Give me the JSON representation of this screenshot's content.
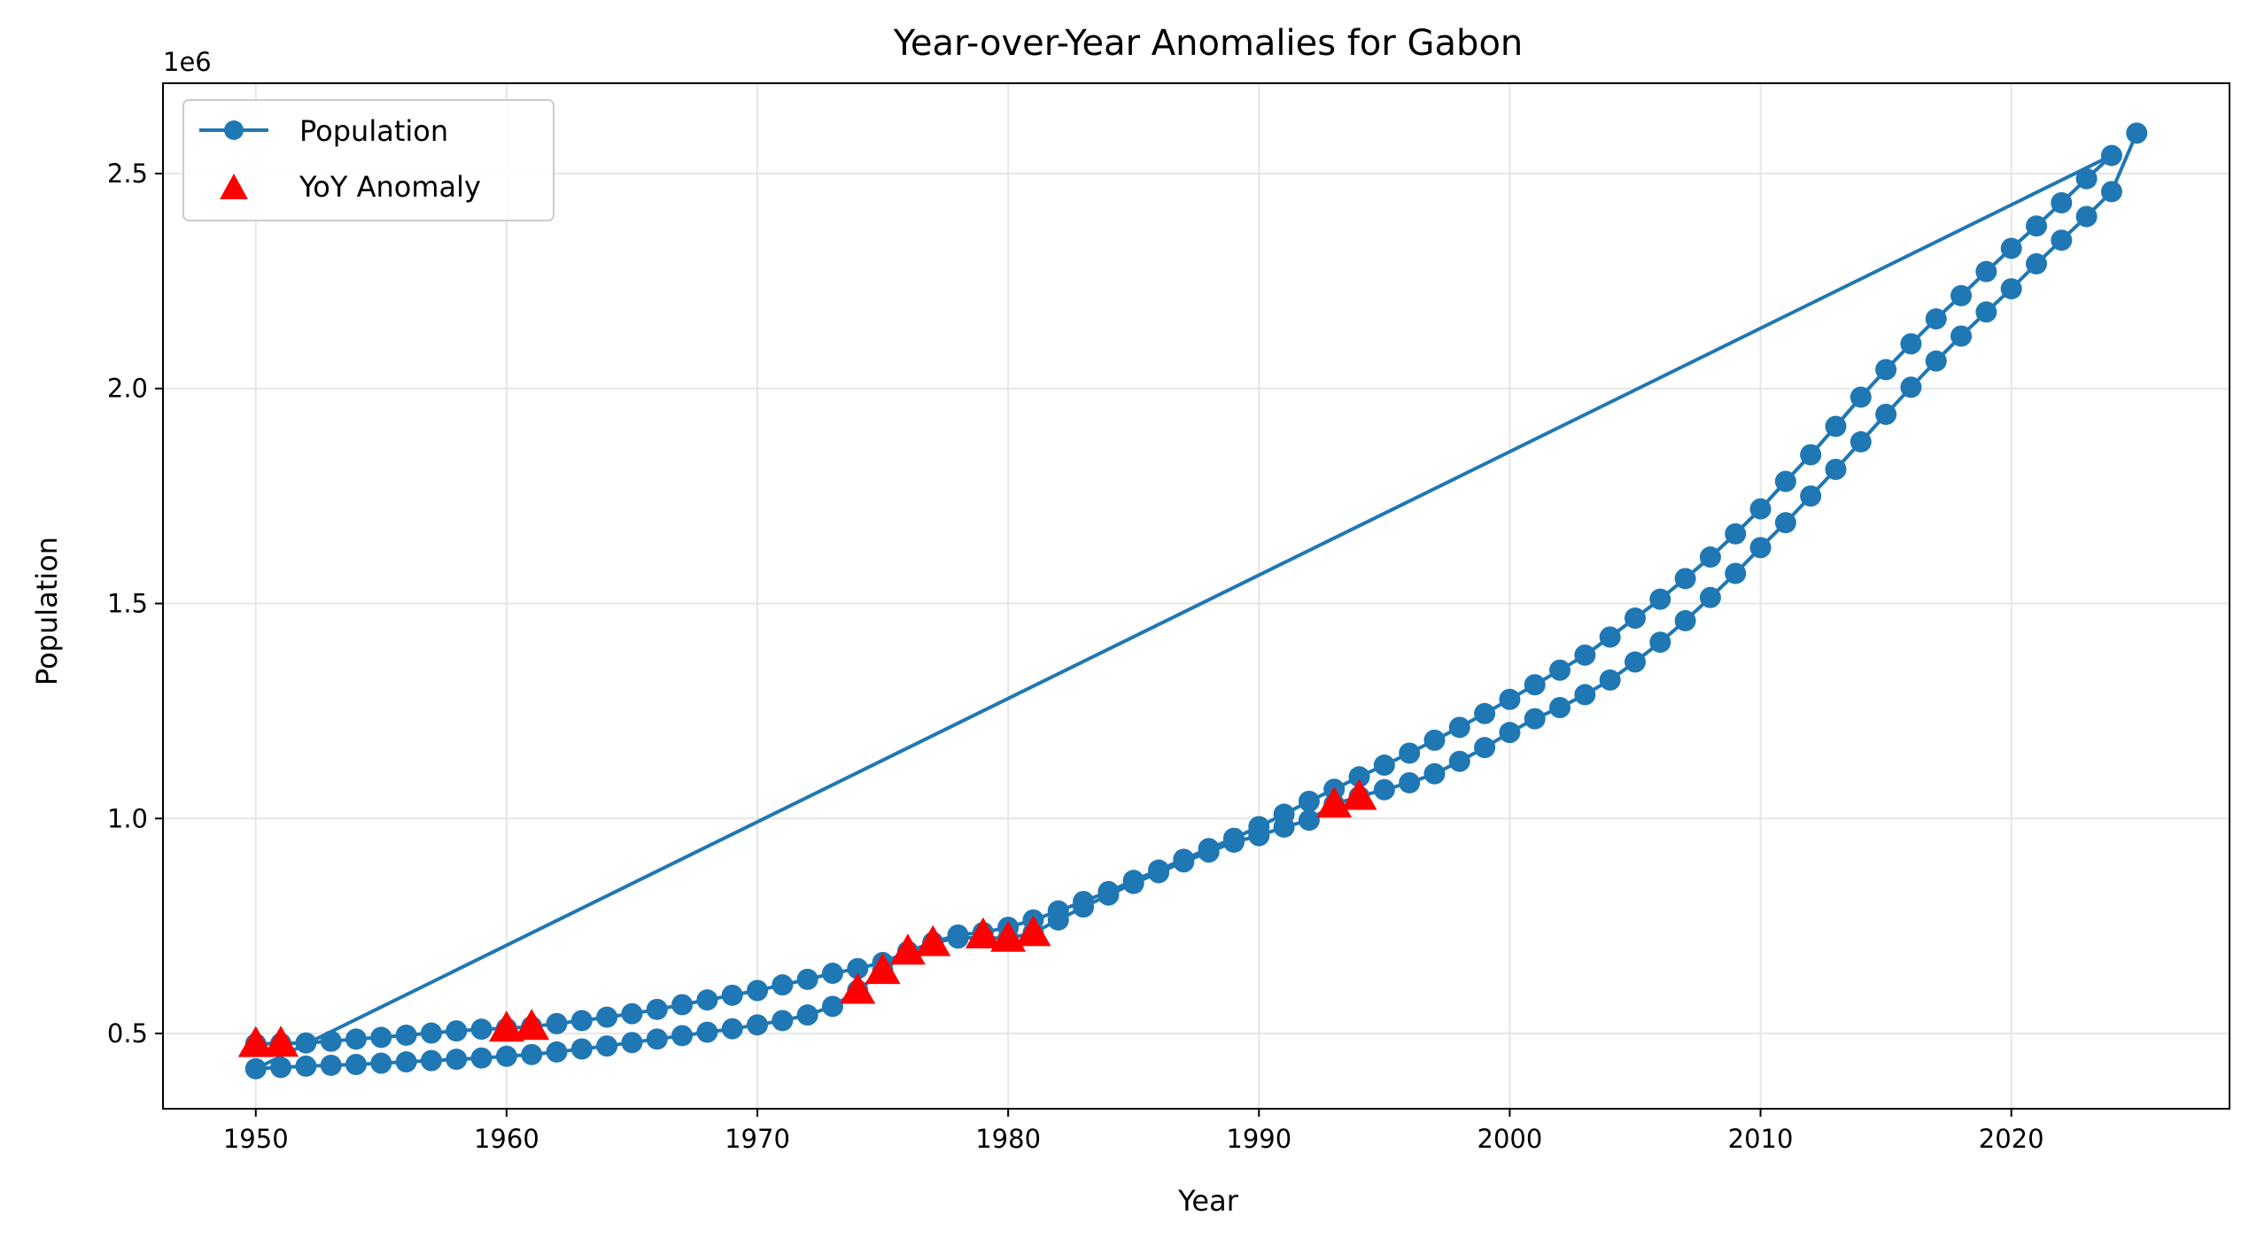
{
  "chart_data": {
    "type": "line",
    "title": "Year-over-Year Anomalies for Gabon",
    "xlabel": "Year",
    "ylabel": "Population",
    "y_offset_label": "1e6",
    "xlim": [
      1946.3,
      2028.7
    ],
    "ylim": [
      0.325,
      2.71
    ],
    "y_scale_factor": 1000000,
    "xticks": [
      1950,
      1960,
      1970,
      1980,
      1990,
      2000,
      2010,
      2020
    ],
    "yticks": [
      0.5,
      1.0,
      1.5,
      2.0,
      2.5
    ],
    "ytick_labels": [
      "0.5",
      "1.0",
      "1.5",
      "2.0",
      "2.5"
    ],
    "grid": true,
    "legend_position": "top-left",
    "colors": {
      "population": "#1f77b4",
      "anomaly": "#ff0000"
    },
    "series": [
      {
        "name": "Population",
        "marker": "circle",
        "x": [
          1950,
          1951,
          1952,
          1953,
          1954,
          1955,
          1956,
          1957,
          1958,
          1959,
          1960,
          1961,
          1962,
          1963,
          1964,
          1965,
          1966,
          1967,
          1968,
          1969,
          1970,
          1971,
          1972,
          1973,
          1974,
          1975,
          1976,
          1977,
          1978,
          1979,
          1980,
          1981,
          1982,
          1983,
          1984,
          1985,
          1986,
          1987,
          1988,
          1989,
          1990,
          1991,
          1992,
          1993,
          1994,
          1995,
          1996,
          1997,
          1998,
          1999,
          2000,
          2001,
          2002,
          2003,
          2004,
          2005,
          2006,
          2007,
          2008,
          2009,
          2010,
          2011,
          2012,
          2013,
          2014,
          2015,
          2016,
          2017,
          2018,
          2019,
          2020,
          2021,
          2022,
          2023,
          2024,
          1950,
          1951,
          1952,
          1953,
          1954,
          1955,
          1956,
          1957,
          1958,
          1959,
          1960,
          1961,
          1962,
          1963,
          1964,
          1965,
          1966,
          1967,
          1968,
          1969,
          1970,
          1971,
          1972,
          1973,
          1974,
          1975,
          1976,
          1977,
          1978,
          1979,
          1980,
          1981,
          1982,
          1983,
          1984,
          1985,
          1986,
          1987,
          1988,
          1989,
          1990,
          1991,
          1992,
          1993,
          1994,
          1995,
          1996,
          1997,
          1998,
          1999,
          2000,
          2001,
          2002,
          2003,
          2004,
          2005,
          2006,
          2007,
          2008,
          2009,
          2010,
          2011,
          2012,
          2013,
          2014,
          2015,
          2016,
          2017,
          2018,
          2019,
          2020,
          2021,
          2022,
          2023,
          2024,
          2025
        ],
        "y": [
          0.476,
          0.477,
          0.478,
          0.482,
          0.487,
          0.491,
          0.496,
          0.501,
          0.506,
          0.51,
          0.512,
          0.516,
          0.523,
          0.53,
          0.538,
          0.546,
          0.556,
          0.567,
          0.578,
          0.589,
          0.6,
          0.613,
          0.626,
          0.64,
          0.651,
          0.665,
          0.69,
          0.712,
          0.729,
          0.735,
          0.747,
          0.764,
          0.785,
          0.807,
          0.83,
          0.856,
          0.88,
          0.905,
          0.93,
          0.954,
          0.981,
          1.01,
          1.04,
          1.068,
          1.097,
          1.124,
          1.152,
          1.182,
          1.212,
          1.244,
          1.277,
          1.311,
          1.345,
          1.38,
          1.422,
          1.466,
          1.51,
          1.558,
          1.608,
          1.662,
          1.72,
          1.784,
          1.846,
          1.912,
          1.98,
          2.044,
          2.104,
          2.162,
          2.216,
          2.272,
          2.326,
          2.378,
          2.432,
          2.488,
          2.542,
          0.418,
          0.421,
          0.424,
          0.426,
          0.428,
          0.431,
          0.434,
          0.437,
          0.44,
          0.443,
          0.447,
          0.451,
          0.457,
          0.464,
          0.471,
          0.479,
          0.487,
          0.495,
          0.503,
          0.511,
          0.52,
          0.53,
          0.543,
          0.563,
          0.6,
          0.646,
          0.691,
          0.711,
          0.722,
          0.723,
          0.721,
          0.734,
          0.764,
          0.794,
          0.822,
          0.849,
          0.874,
          0.899,
          0.922,
          0.945,
          0.96,
          0.98,
          0.996,
          1.033,
          1.051,
          1.067,
          1.083,
          1.104,
          1.133,
          1.165,
          1.2,
          1.232,
          1.258,
          1.288,
          1.322,
          1.364,
          1.41,
          1.46,
          1.514,
          1.57,
          1.63,
          1.688,
          1.75,
          1.812,
          1.876,
          1.94,
          2.003,
          2.064,
          2.122,
          2.178,
          2.232,
          2.29,
          2.345,
          2.4,
          2.458,
          2.594
        ]
      },
      {
        "name": "YoY Anomaly",
        "marker": "triangle",
        "x": [
          1950,
          1951,
          1960,
          1961,
          1974,
          1975,
          1976,
          1977,
          1979,
          1980,
          1981,
          1993,
          1994
        ],
        "y": [
          0.476,
          0.477,
          0.512,
          0.516,
          0.6,
          0.646,
          0.691,
          0.711,
          0.729,
          0.721,
          0.734,
          1.033,
          1.051
        ]
      }
    ]
  }
}
